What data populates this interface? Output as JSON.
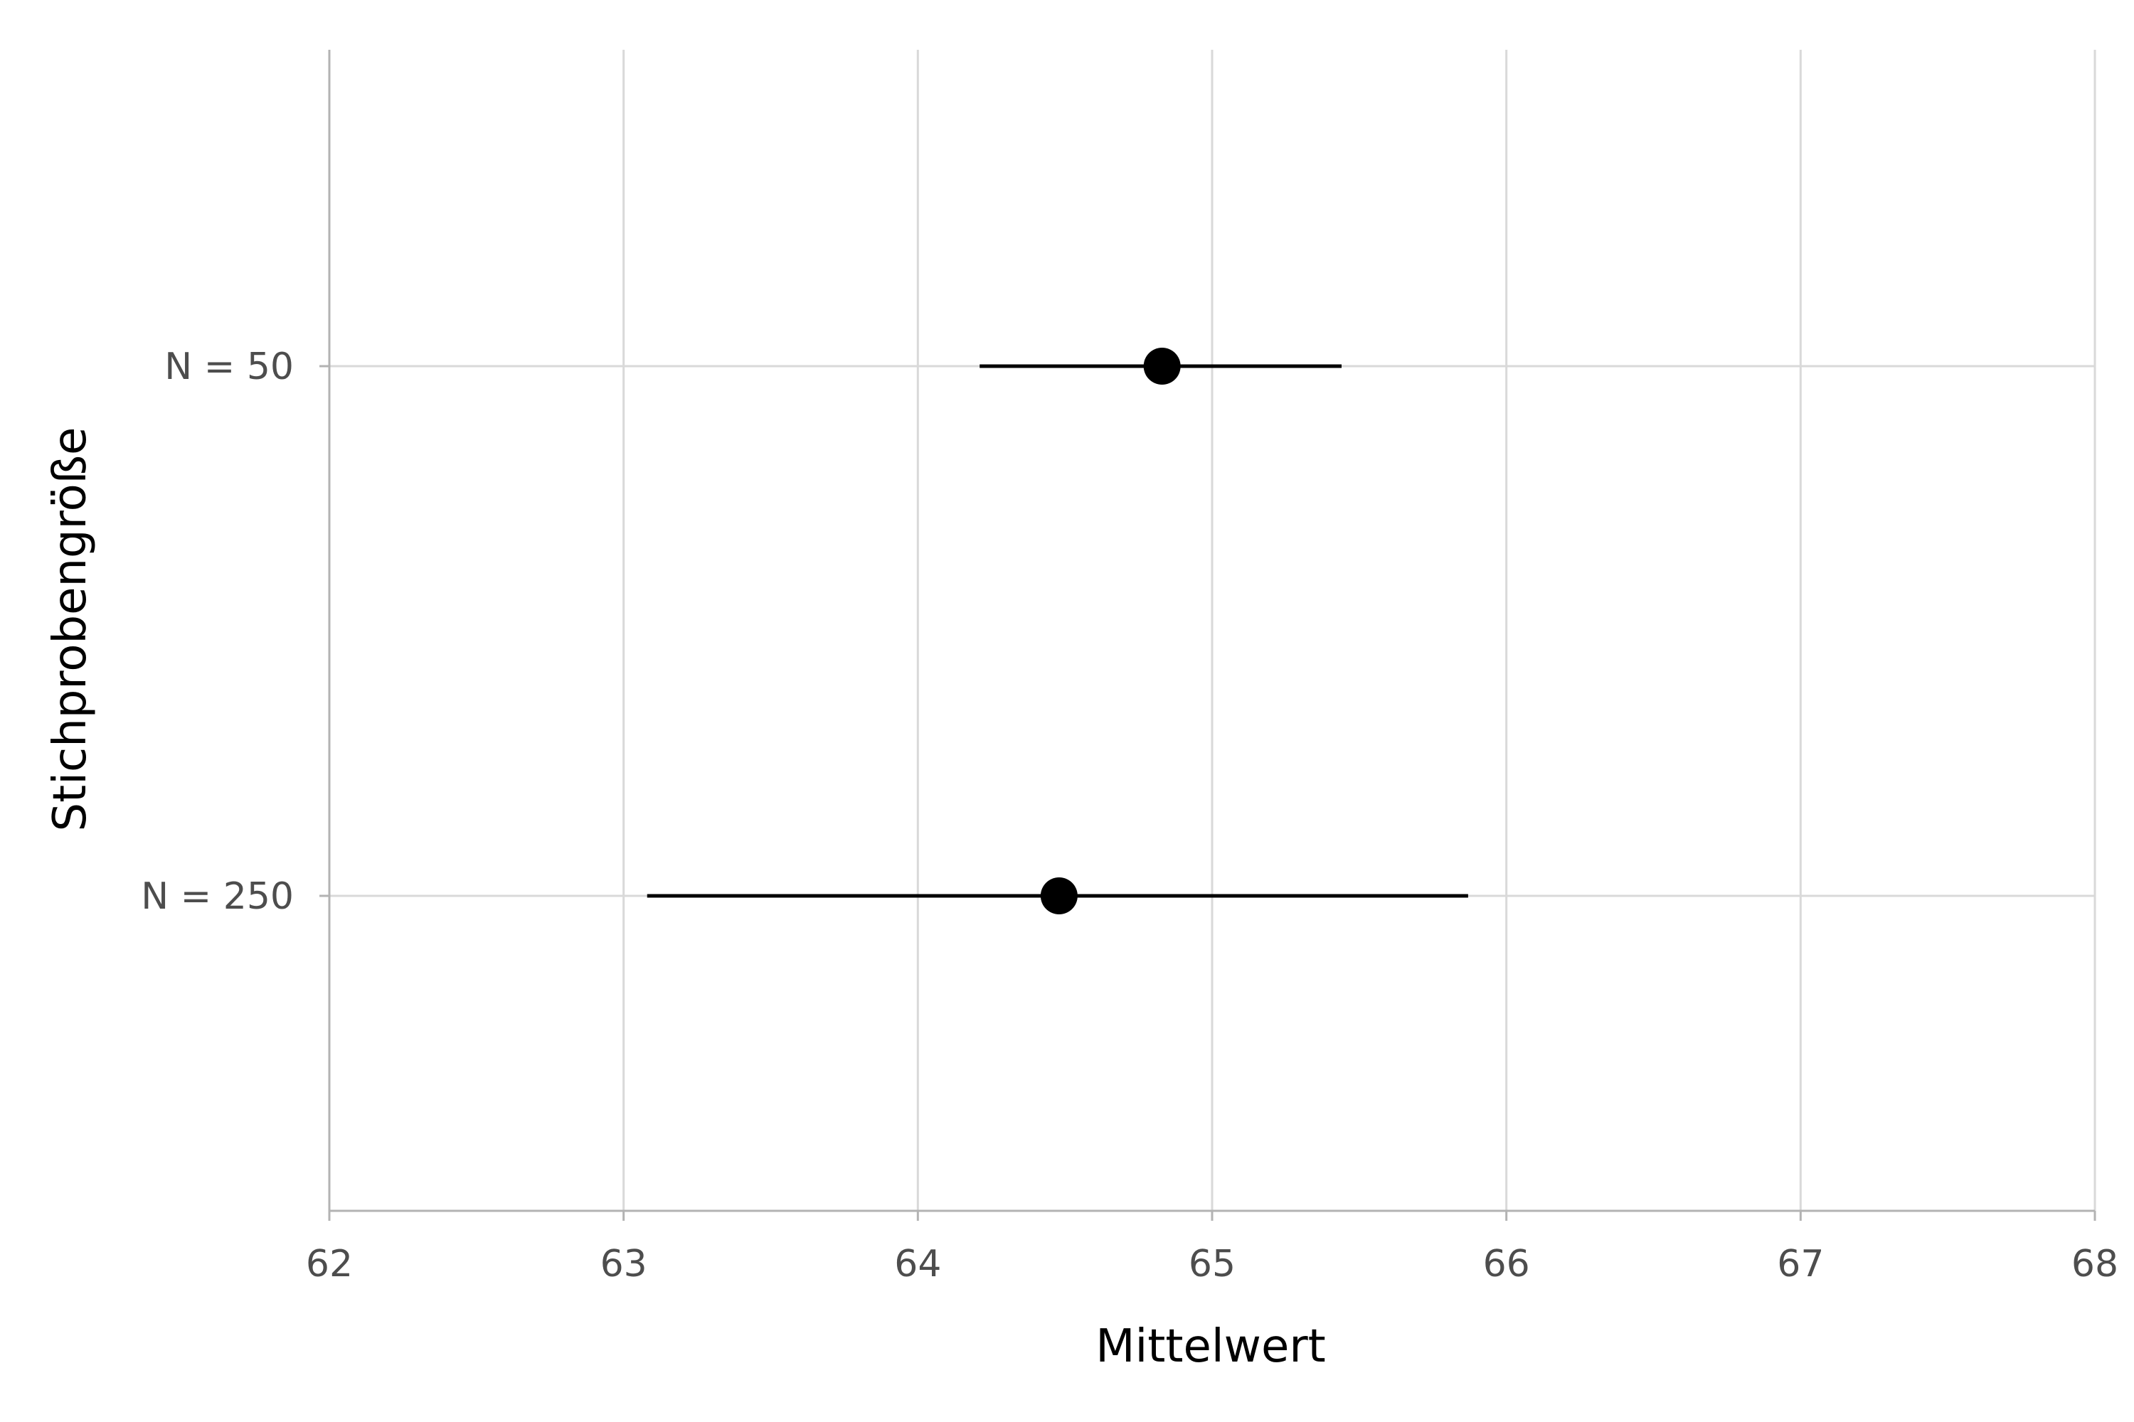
{
  "chart_data": {
    "type": "scatter",
    "subtype": "point-range",
    "xlabel": "Mittelwert",
    "ylabel": "Stichprobengröße",
    "xlim": [
      62,
      68
    ],
    "x_ticks": [
      62,
      63,
      64,
      65,
      66,
      67,
      68
    ],
    "categories": [
      "N = 50",
      "N = 250"
    ],
    "points": [
      {
        "category": "N = 50",
        "mean": 64.83,
        "lower": 64.21,
        "upper": 65.44
      },
      {
        "category": "N = 250",
        "mean": 64.48,
        "lower": 63.08,
        "upper": 65.87
      }
    ],
    "grid": true,
    "legend": "none",
    "colors": {
      "point": "#000000",
      "grid": "#d9d9d9",
      "axis": "#b3b3b3"
    }
  }
}
